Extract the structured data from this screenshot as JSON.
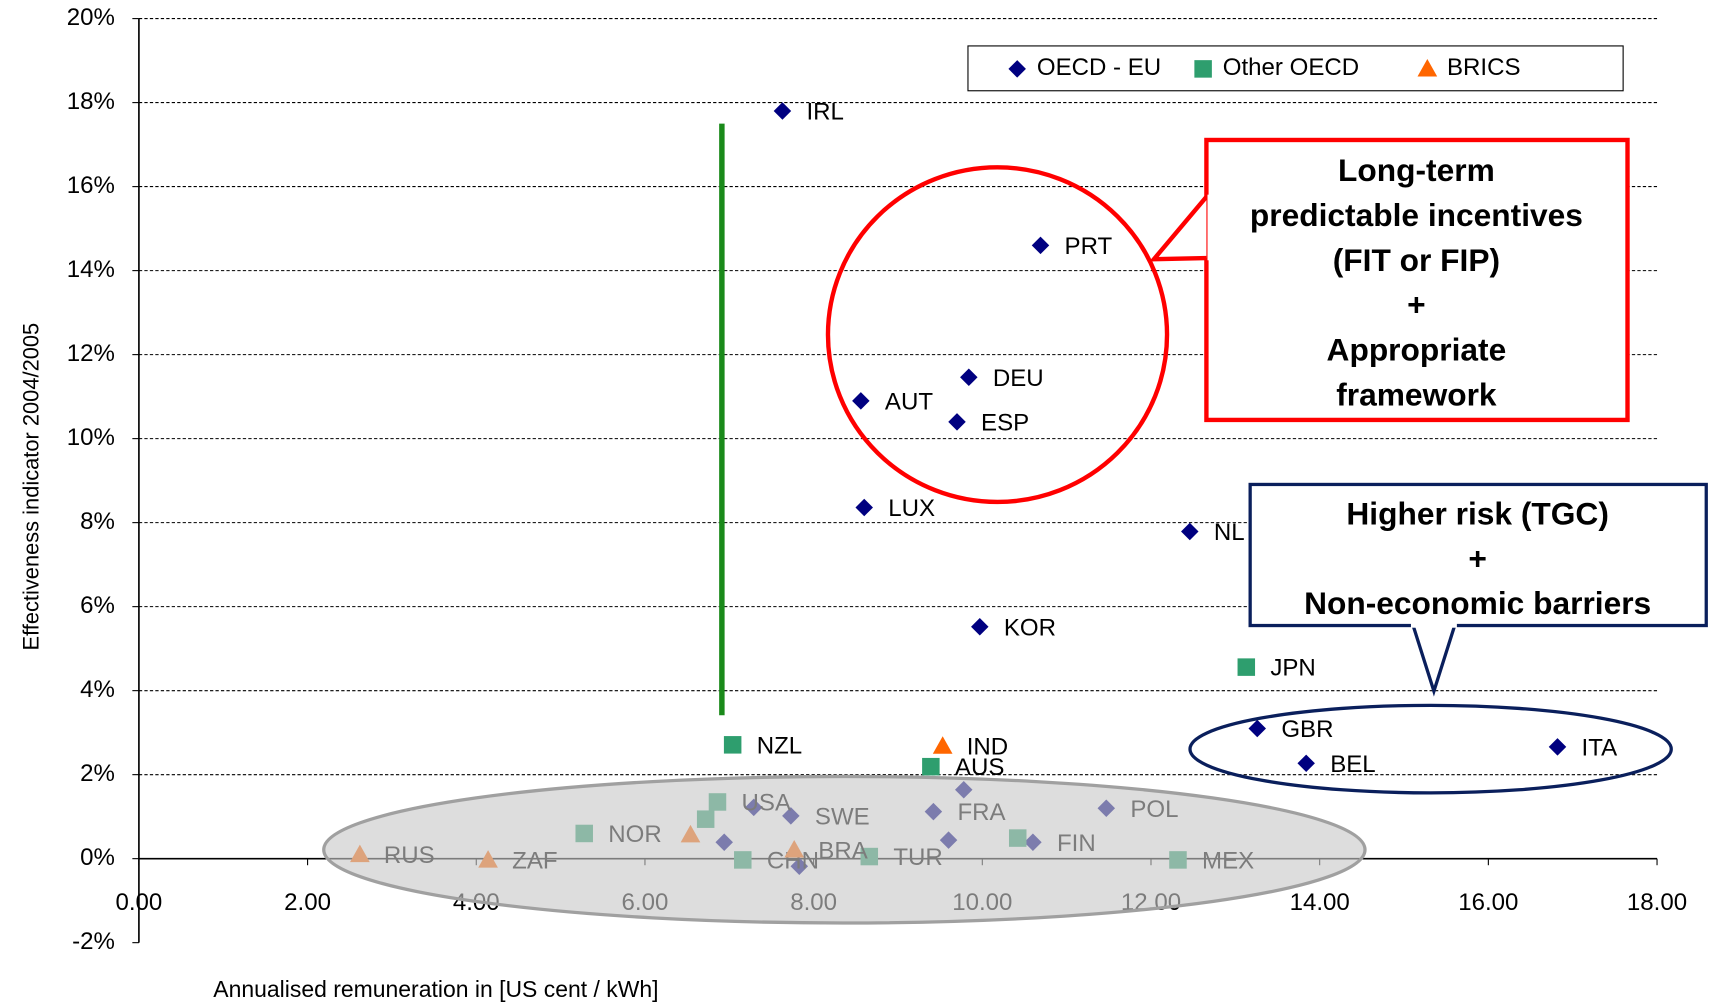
{
  "chart_data": {
    "type": "scatter",
    "xlabel": "Annualised remuneration in [US cent / kWh]",
    "ylabel": "Effectiveness indicator 2004/2005",
    "xlim": [
      0,
      18
    ],
    "xticks": [
      {
        "value": 0,
        "label": "0.00"
      },
      {
        "value": 2,
        "label": "2.00"
      },
      {
        "value": 4,
        "label": "4.00"
      },
      {
        "value": 6,
        "label": "6.00"
      },
      {
        "value": 8,
        "label": "8.00"
      },
      {
        "value": 10,
        "label": "10.00"
      },
      {
        "value": 12,
        "label": "12.00"
      },
      {
        "value": 14,
        "label": "14.00"
      },
      {
        "value": 16,
        "label": "16.00"
      },
      {
        "value": 18,
        "label": "18.00"
      }
    ],
    "ylim": [
      -2,
      20
    ],
    "yticks": [
      {
        "value": -2,
        "label": "-2%"
      },
      {
        "value": 0,
        "label": "0%"
      },
      {
        "value": 2,
        "label": "2%"
      },
      {
        "value": 4,
        "label": "4%"
      },
      {
        "value": 6,
        "label": "6%"
      },
      {
        "value": 8,
        "label": "8%"
      },
      {
        "value": 10,
        "label": "10%"
      },
      {
        "value": 12,
        "label": "12%"
      },
      {
        "value": 14,
        "label": "14%"
      },
      {
        "value": 16,
        "label": "16%"
      },
      {
        "value": 18,
        "label": "18%"
      },
      {
        "value": 20,
        "label": "20%"
      }
    ],
    "grid": true,
    "legend": "top-right",
    "series": [
      {
        "name": "OECD - EU",
        "color": "#000080",
        "marker": "diamond",
        "x": [
          7.63,
          10.69,
          9.84,
          8.56,
          9.7,
          8.6,
          12.46,
          9.97,
          13.26,
          13.84,
          16.82,
          7.73,
          9.42,
          11.47,
          10.6,
          7.29,
          6.94,
          7.83,
          9.78,
          9.6
        ],
        "values": [
          17.8,
          14.6,
          11.46,
          10.9,
          10.4,
          8.36,
          7.79,
          5.52,
          3.1,
          2.27,
          2.66,
          1.02,
          1.12,
          1.2,
          0.39,
          1.22,
          0.39,
          -0.18,
          1.64,
          0.44
        ],
        "labels": [
          "IRL",
          "PRT",
          "DEU",
          "AUT",
          "ESP",
          "LUX",
          "NL",
          "KOR",
          "GBR",
          "BEL",
          "ITA",
          "SWE",
          "FRA",
          "POL",
          "FIN",
          null,
          null,
          null,
          null,
          null
        ]
      },
      {
        "name": "Other OECD",
        "color": "#2e9e6e",
        "marker": "square",
        "x": [
          7.04,
          9.39,
          13.13,
          5.28,
          6.86,
          7.16,
          8.66,
          12.32,
          6.72,
          10.42
        ],
        "values": [
          2.71,
          2.19,
          4.56,
          0.6,
          1.35,
          -0.03,
          0.05,
          -0.03,
          0.94,
          0.49
        ],
        "labels": [
          "NZL",
          "AUS",
          "JPN",
          "NOR",
          "USA",
          "CHN",
          "TUR",
          "MEX",
          null,
          null
        ]
      },
      {
        "name": "BRICS",
        "color": "#ff6600",
        "marker": "triangle",
        "x": [
          9.53,
          2.62,
          4.14,
          7.77,
          6.54
        ],
        "values": [
          2.68,
          0.1,
          -0.03,
          0.21,
          0.57
        ],
        "labels": [
          "IND",
          "RUS",
          "ZAF",
          "BRA",
          null
        ]
      }
    ],
    "annotations": [
      {
        "lines": [
          "Long-term",
          "predictable incentives",
          "(FIT or FIP)",
          "+",
          "Appropriate",
          "framework"
        ],
        "color": "#ff0000"
      },
      {
        "lines": [
          "Higher risk (TGC)",
          "+",
          "Non-economic barriers"
        ],
        "color": "#0a1f5c"
      }
    ]
  }
}
